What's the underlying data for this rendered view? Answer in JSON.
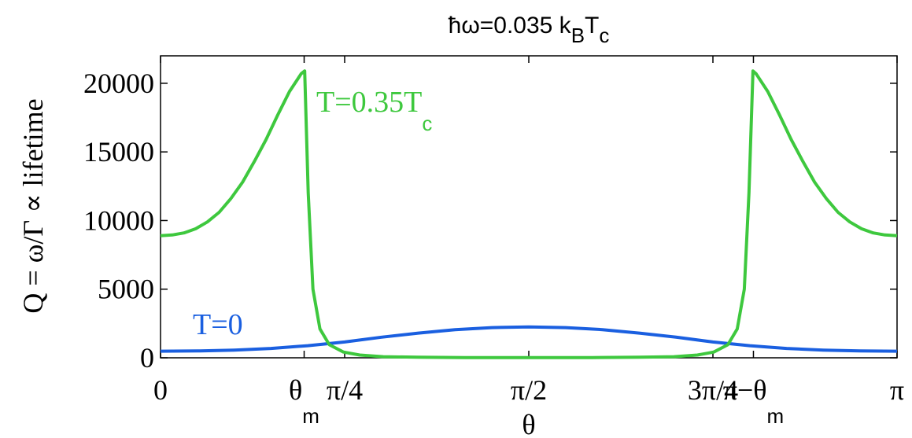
{
  "chart_data": {
    "type": "line",
    "title_main": "ħω=0.035 k",
    "title_sub1": "B",
    "title_mid": "T",
    "title_sub2": "c",
    "ylabel": "Q = ω/Γ ∝ lifetime",
    "xlabel": "θ",
    "xlim": [
      0,
      3.14159265
    ],
    "ylim": [
      0,
      22000
    ],
    "yticks": [
      0,
      5000,
      10000,
      15000,
      20000
    ],
    "ytick_labels": [
      "0",
      "5000",
      "10000",
      "15000",
      "20000"
    ],
    "xticks": [
      0,
      0.6126,
      0.7854,
      1.5708,
      2.3562,
      2.529,
      3.14159265
    ],
    "xtick_labels": [
      "0",
      "θ",
      "π/4",
      "π/2",
      "3π/4",
      "π−θ",
      "π"
    ],
    "xtick_subs": [
      "",
      "m",
      "",
      "",
      "",
      "m",
      ""
    ],
    "grid": false,
    "series": [
      {
        "name": "T=0",
        "color": "#1a5fe0",
        "label_text": "T=0",
        "label_sub": "",
        "x": [
          0,
          0.1571,
          0.3142,
          0.4712,
          0.6283,
          0.7854,
          0.9425,
          1.0996,
          1.2566,
          1.4137,
          1.5708,
          1.7279,
          1.885,
          2.042,
          2.1991,
          2.3562,
          2.5133,
          2.6704,
          2.8274,
          2.9845,
          3.1416
        ],
        "y": [
          480,
          500,
          560,
          680,
          880,
          1150,
          1500,
          1800,
          2050,
          2200,
          2250,
          2200,
          2050,
          1800,
          1500,
          1150,
          880,
          680,
          560,
          500,
          480
        ]
      },
      {
        "name": "T=0.35Tc",
        "color": "#3ec83e",
        "label_text": "T=0.35T",
        "label_sub": "c",
        "x": [
          0,
          0.05,
          0.1,
          0.15,
          0.2,
          0.25,
          0.3,
          0.35,
          0.4,
          0.45,
          0.5,
          0.55,
          0.6,
          0.615,
          0.63,
          0.65,
          0.68,
          0.72,
          0.78,
          0.85,
          0.95,
          1.1,
          1.3,
          1.5708,
          1.84,
          2.04,
          2.19,
          2.29,
          2.36,
          2.42,
          2.46,
          2.49,
          2.51,
          2.527,
          2.54,
          2.59,
          2.64,
          2.69,
          2.74,
          2.79,
          2.84,
          2.89,
          2.94,
          2.99,
          3.04,
          3.09,
          3.1416
        ],
        "y": [
          8900,
          8950,
          9100,
          9400,
          9900,
          10600,
          11600,
          12800,
          14300,
          15900,
          17700,
          19400,
          20700,
          20900,
          12000,
          5000,
          2100,
          950,
          420,
          200,
          80,
          40,
          20,
          10,
          20,
          40,
          80,
          200,
          420,
          950,
          2100,
          5000,
          12000,
          20900,
          20700,
          19400,
          17700,
          15900,
          14300,
          12800,
          11600,
          10600,
          9900,
          9400,
          9100,
          8950,
          8900
        ]
      }
    ]
  }
}
